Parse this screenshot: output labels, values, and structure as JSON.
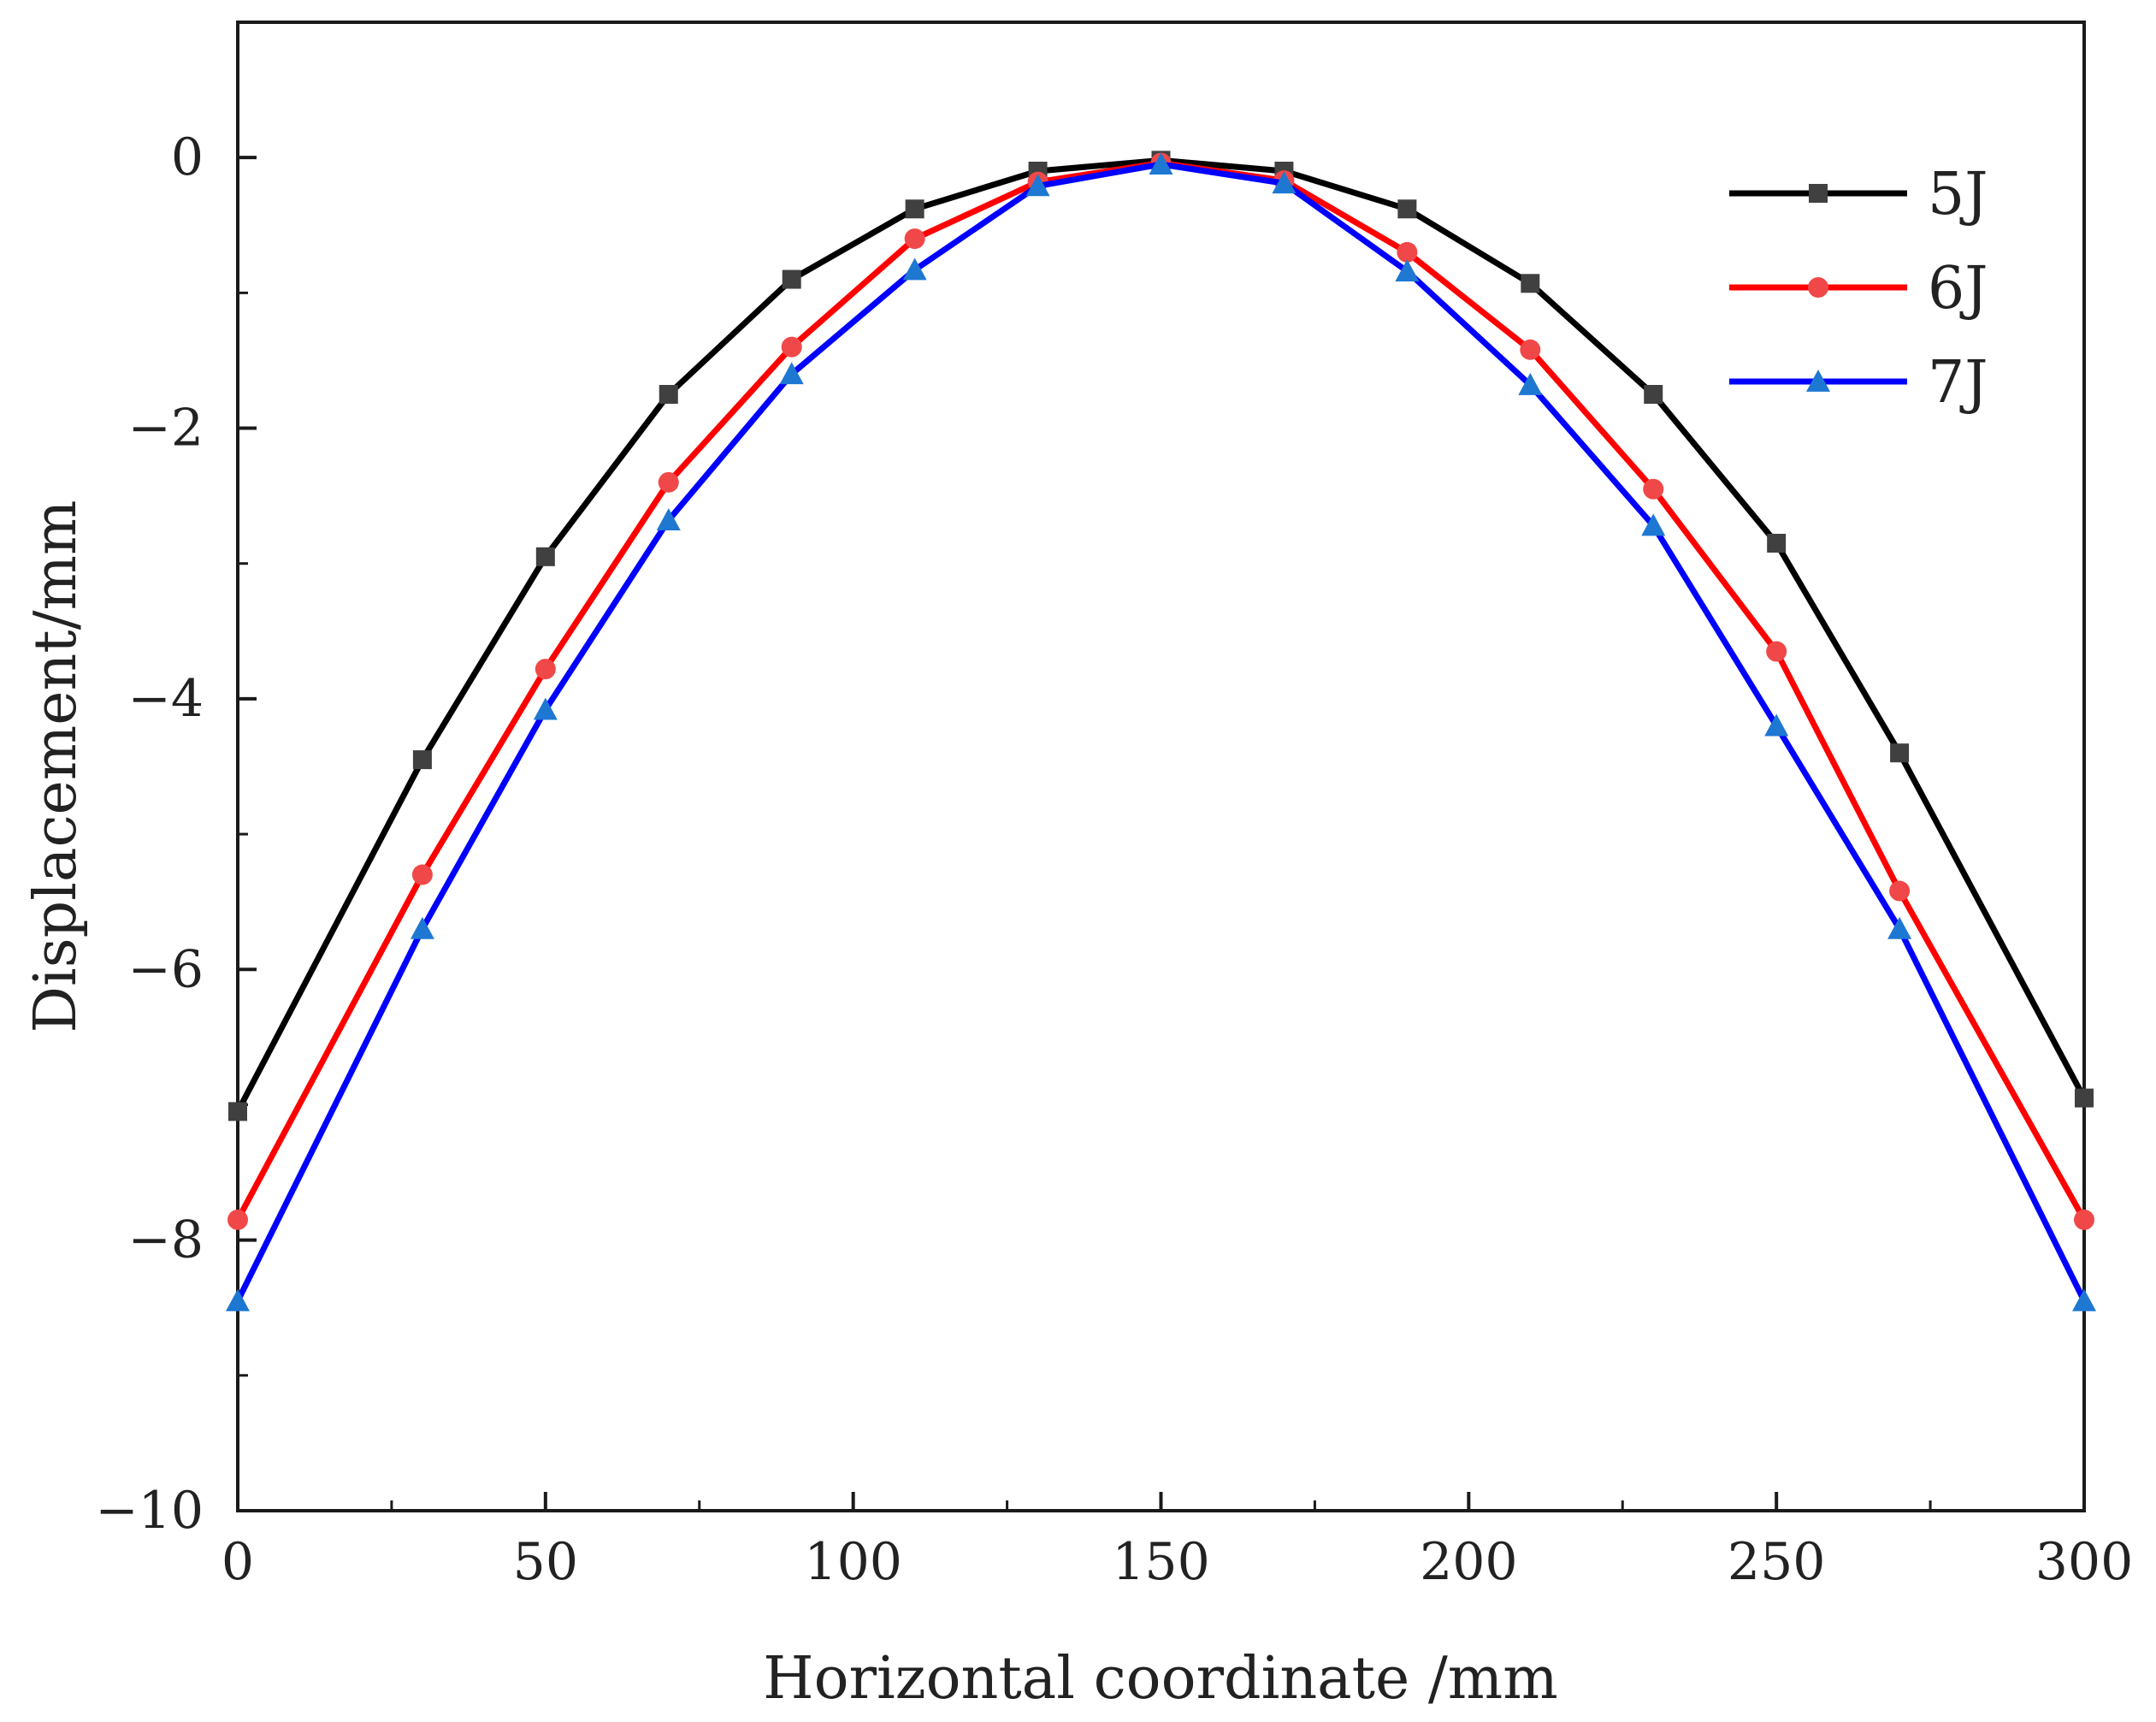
{
  "chart_data": {
    "type": "line",
    "title": "",
    "xlabel": "Horizontal coordinate /mm",
    "ylabel": "Displacement/mm",
    "xlim": [
      0,
      300
    ],
    "ylim": [
      -10,
      1
    ],
    "xticks": [
      0,
      50,
      100,
      150,
      200,
      250,
      300
    ],
    "xtick_labels": [
      "0",
      "50",
      "100",
      "150",
      "200",
      "250",
      "300"
    ],
    "yticks": [
      0,
      -2,
      -4,
      -6,
      -8,
      -10
    ],
    "ytick_labels": [
      "0",
      "−2",
      "−4",
      "−6",
      "−8",
      "−10"
    ],
    "grid": false,
    "legend_position": "top-right",
    "x": [
      0,
      30,
      50,
      70,
      90,
      110,
      130,
      150,
      170,
      190,
      210,
      230,
      250,
      270,
      300
    ],
    "series": [
      {
        "name": "5J",
        "color": "#000000",
        "marker_color": "#404040",
        "marker": "square",
        "values": [
          -7.05,
          -4.45,
          -2.95,
          -1.75,
          -0.9,
          -0.38,
          -0.1,
          -0.02,
          -0.1,
          -0.38,
          -0.93,
          -1.75,
          -2.85,
          -4.4,
          -6.95
        ]
      },
      {
        "name": "6J",
        "color": "#ff0000",
        "marker_color": "#f04848",
        "marker": "circle",
        "values": [
          -7.85,
          -5.3,
          -3.78,
          -2.4,
          -1.4,
          -0.6,
          -0.18,
          -0.04,
          -0.17,
          -0.7,
          -1.42,
          -2.45,
          -3.65,
          -5.42,
          -7.85
        ]
      },
      {
        "name": "7J",
        "color": "#0000ff",
        "marker_color": "#1e78d2",
        "marker": "triangle",
        "values": [
          -8.45,
          -5.7,
          -4.08,
          -2.68,
          -1.6,
          -0.83,
          -0.21,
          -0.05,
          -0.19,
          -0.84,
          -1.68,
          -2.72,
          -4.2,
          -5.7,
          -8.45
        ]
      }
    ]
  }
}
